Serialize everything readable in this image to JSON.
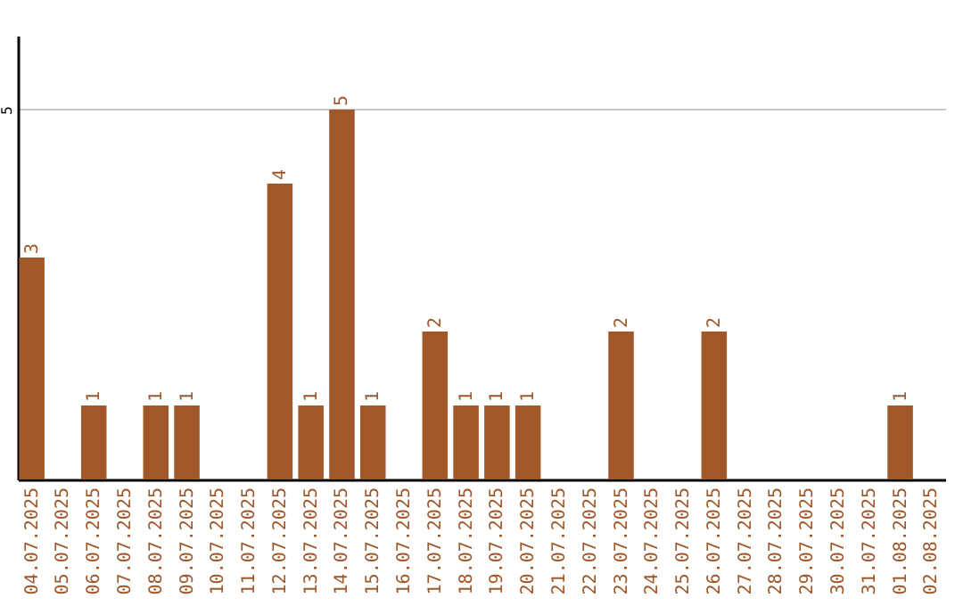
{
  "chart_data": {
    "type": "bar",
    "categories": [
      "04.07.2025",
      "05.07.2025",
      "06.07.2025",
      "07.07.2025",
      "08.07.2025",
      "09.07.2025",
      "10.07.2025",
      "11.07.2025",
      "12.07.2025",
      "13.07.2025",
      "14.07.2025",
      "15.07.2025",
      "16.07.2025",
      "17.07.2025",
      "18.07.2025",
      "19.07.2025",
      "20.07.2025",
      "21.07.2025",
      "22.07.2025",
      "23.07.2025",
      "24.07.2025",
      "25.07.2025",
      "26.07.2025",
      "27.07.2025",
      "28.07.2025",
      "29.07.2025",
      "30.07.2025",
      "31.07.2025",
      "01.08.2025",
      "02.08.2025"
    ],
    "values": [
      3,
      0,
      1,
      0,
      1,
      1,
      0,
      0,
      4,
      1,
      5,
      1,
      0,
      2,
      1,
      1,
      1,
      0,
      0,
      2,
      0,
      0,
      2,
      0,
      0,
      0,
      0,
      0,
      1,
      0
    ],
    "value_labels": [
      "3",
      null,
      "1",
      null,
      "1",
      "1",
      null,
      null,
      "4",
      "1",
      "5",
      "1",
      null,
      "2",
      "1",
      "1",
      "1",
      null,
      null,
      "2",
      null,
      null,
      "2",
      null,
      null,
      null,
      null,
      null,
      "1",
      null
    ],
    "color": "#a0582a",
    "ylim": [
      0,
      6
    ],
    "yticks": [
      5
    ],
    "grid": "y"
  }
}
